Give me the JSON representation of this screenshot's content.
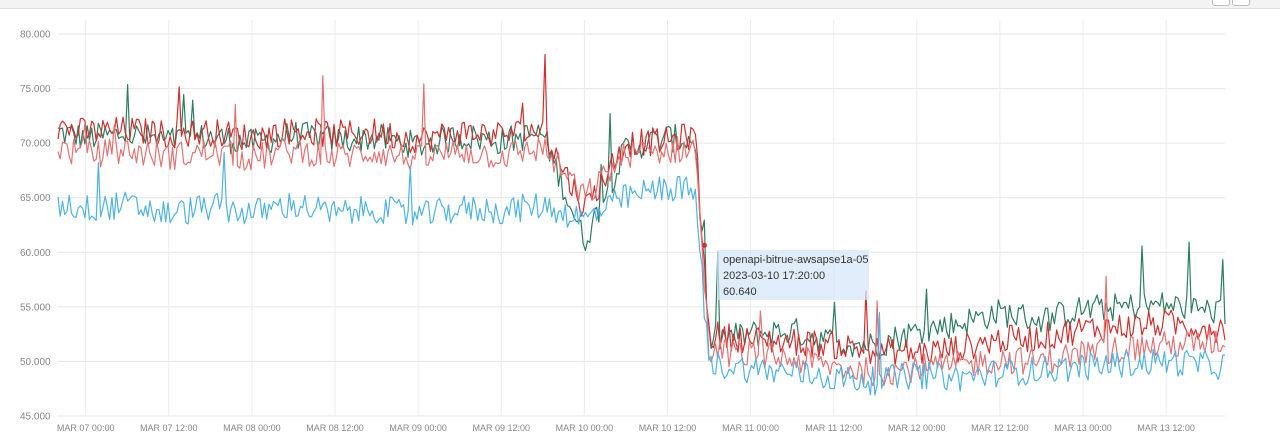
{
  "chart_data": {
    "type": "line",
    "title": "",
    "xlabel": "",
    "ylabel": "",
    "ylim": [
      45,
      80
    ],
    "y_ticks": [
      "80.000",
      "75.000",
      "70.000",
      "65.000",
      "60.000",
      "55.000",
      "50.000",
      "45.000"
    ],
    "x_range": [
      "2023-03-06 20:00",
      "2023-03-13 20:30"
    ],
    "x_ticks": [
      {
        "label": "Mar 07 00:00",
        "t": "2023-03-07 00:00"
      },
      {
        "label": "Mar 07 12:00",
        "t": "2023-03-07 12:00"
      },
      {
        "label": "Mar 08 00:00",
        "t": "2023-03-08 00:00"
      },
      {
        "label": "Mar 08 12:00",
        "t": "2023-03-08 12:00"
      },
      {
        "label": "Mar 09 00:00",
        "t": "2023-03-09 00:00"
      },
      {
        "label": "Mar 09 12:00",
        "t": "2023-03-09 12:00"
      },
      {
        "label": "Mar 10 00:00",
        "t": "2023-03-10 00:00"
      },
      {
        "label": "Mar 10 12:00",
        "t": "2023-03-10 12:00"
      },
      {
        "label": "Mar 11 00:00",
        "t": "2023-03-11 00:00"
      },
      {
        "label": "Mar 11 12:00",
        "t": "2023-03-11 12:00"
      },
      {
        "label": "Mar 12 00:00",
        "t": "2023-03-12 00:00"
      },
      {
        "label": "Mar 12 12:00",
        "t": "2023-03-12 12:00"
      },
      {
        "label": "Mar 13 00:00",
        "t": "2023-03-13 00:00"
      },
      {
        "label": "Mar 13 12:00",
        "t": "2023-03-13 12:00"
      }
    ],
    "grid": true,
    "legend": "none",
    "series": [
      {
        "color": "#2e7d62",
        "x": [
          "2023-03-06 20:00",
          "2023-03-07 00:00",
          "2023-03-07 06:00",
          "2023-03-07 12:00",
          "2023-03-07 18:00",
          "2023-03-08 00:00",
          "2023-03-08 06:00",
          "2023-03-08 12:00",
          "2023-03-08 18:00",
          "2023-03-09 00:00",
          "2023-03-09 06:00",
          "2023-03-09 12:00",
          "2023-03-09 18:00",
          "2023-03-10 00:00",
          "2023-03-10 06:00",
          "2023-03-10 12:00",
          "2023-03-10 16:00",
          "2023-03-10 18:00",
          "2023-03-11 00:00",
          "2023-03-11 06:00",
          "2023-03-11 12:00",
          "2023-03-11 18:00",
          "2023-03-12 00:00",
          "2023-03-12 06:00",
          "2023-03-12 12:00",
          "2023-03-12 18:00",
          "2023-03-13 00:00",
          "2023-03-13 06:00",
          "2023-03-13 12:00",
          "2023-03-13 20:00"
        ],
        "y": [
          71.0,
          70.5,
          70.8,
          70.2,
          70.6,
          70.0,
          70.8,
          70.3,
          70.5,
          69.8,
          70.6,
          70.2,
          70.9,
          61.0,
          69.5,
          70.5,
          70.2,
          52.0,
          52.5,
          52.8,
          51.8,
          51.5,
          52.8,
          53.5,
          54.5,
          53.8,
          54.8,
          55.0,
          55.2,
          54.5
        ]
      },
      {
        "color": "#d32f2f",
        "x": [
          "2023-03-06 20:00",
          "2023-03-07 00:00",
          "2023-03-07 06:00",
          "2023-03-07 12:00",
          "2023-03-07 18:00",
          "2023-03-08 00:00",
          "2023-03-08 06:00",
          "2023-03-08 12:00",
          "2023-03-08 18:00",
          "2023-03-09 00:00",
          "2023-03-09 06:00",
          "2023-03-09 12:00",
          "2023-03-09 18:00",
          "2023-03-10 00:00",
          "2023-03-10 06:00",
          "2023-03-10 12:00",
          "2023-03-10 16:00",
          "2023-03-10 18:00",
          "2023-03-11 00:00",
          "2023-03-11 06:00",
          "2023-03-11 12:00",
          "2023-03-11 18:00",
          "2023-03-12 00:00",
          "2023-03-12 06:00",
          "2023-03-12 12:00",
          "2023-03-12 18:00",
          "2023-03-13 00:00",
          "2023-03-13 06:00",
          "2023-03-13 12:00",
          "2023-03-13 20:00"
        ],
        "y": [
          71.5,
          71.0,
          71.2,
          70.8,
          71.0,
          70.5,
          71.2,
          70.8,
          71.0,
          70.3,
          71.0,
          70.8,
          71.2,
          64.0,
          70.0,
          70.2,
          70.8,
          52.5,
          52.0,
          51.8,
          51.5,
          51.0,
          50.8,
          51.2,
          52.0,
          52.2,
          53.0,
          53.2,
          53.5,
          53.0
        ]
      },
      {
        "color": "#e57373",
        "x": [
          "2023-03-06 20:00",
          "2023-03-07 00:00",
          "2023-03-07 06:00",
          "2023-03-07 12:00",
          "2023-03-07 18:00",
          "2023-03-08 00:00",
          "2023-03-08 06:00",
          "2023-03-08 12:00",
          "2023-03-08 18:00",
          "2023-03-09 00:00",
          "2023-03-09 06:00",
          "2023-03-09 12:00",
          "2023-03-09 18:00",
          "2023-03-10 00:00",
          "2023-03-10 06:00",
          "2023-03-10 12:00",
          "2023-03-10 16:00",
          "2023-03-10 18:00",
          "2023-03-11 00:00",
          "2023-03-11 06:00",
          "2023-03-11 12:00",
          "2023-03-11 18:00",
          "2023-03-12 00:00",
          "2023-03-12 06:00",
          "2023-03-12 12:00",
          "2023-03-12 18:00",
          "2023-03-13 00:00",
          "2023-03-13 06:00",
          "2023-03-13 12:00",
          "2023-03-13 20:00"
        ],
        "y": [
          69.5,
          69.0,
          69.3,
          68.8,
          69.2,
          68.6,
          69.4,
          68.8,
          69.2,
          68.5,
          69.3,
          68.8,
          69.6,
          65.0,
          69.0,
          69.3,
          69.6,
          51.0,
          50.6,
          50.2,
          49.5,
          49.0,
          49.4,
          49.6,
          50.2,
          50.0,
          50.8,
          51.2,
          51.5,
          51.8
        ]
      },
      {
        "color": "#4fb3e8",
        "x": [
          "2023-03-06 20:00",
          "2023-03-07 00:00",
          "2023-03-07 06:00",
          "2023-03-07 12:00",
          "2023-03-07 18:00",
          "2023-03-08 00:00",
          "2023-03-08 06:00",
          "2023-03-08 12:00",
          "2023-03-08 18:00",
          "2023-03-09 00:00",
          "2023-03-09 06:00",
          "2023-03-09 12:00",
          "2023-03-09 18:00",
          "2023-03-10 00:00",
          "2023-03-10 06:00",
          "2023-03-10 12:00",
          "2023-03-10 16:00",
          "2023-03-10 18:00",
          "2023-03-11 00:00",
          "2023-03-11 06:00",
          "2023-03-11 12:00",
          "2023-03-11 18:00",
          "2023-03-12 00:00",
          "2023-03-12 06:00",
          "2023-03-12 12:00",
          "2023-03-12 18:00",
          "2023-03-13 00:00",
          "2023-03-13 06:00",
          "2023-03-13 12:00",
          "2023-03-13 20:00"
        ],
        "y": [
          64.5,
          64.0,
          64.3,
          63.5,
          64.2,
          63.6,
          64.4,
          63.5,
          64.0,
          63.3,
          64.0,
          63.8,
          64.3,
          63.0,
          65.0,
          66.0,
          65.5,
          49.8,
          49.3,
          49.0,
          48.5,
          48.2,
          48.8,
          48.5,
          49.0,
          49.2,
          49.5,
          49.8,
          50.0,
          49.6
        ]
      }
    ],
    "tooltip": {
      "series": "openapi-bitrue-awsapse1a-05",
      "time": "2023-03-10 17:20:00",
      "value": "60.640"
    }
  }
}
